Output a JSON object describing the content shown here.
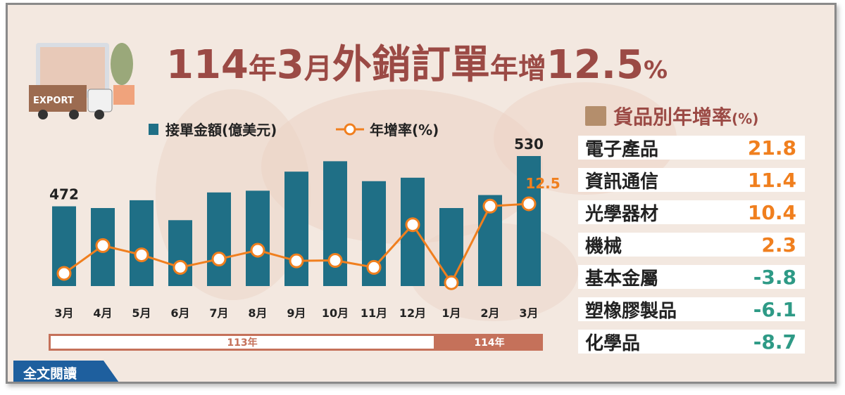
{
  "title": {
    "year": "114",
    "year_unit": "年",
    "month": "3",
    "month_unit": "月",
    "subject": "外銷訂單",
    "growth_label": "年增",
    "growth_value": "12.5",
    "growth_unit": "%"
  },
  "illustration": {
    "export_label": "EXPORT"
  },
  "legend": {
    "bar_label": "接單金額(億美元)",
    "line_label": "年增率(%)"
  },
  "chart_data": {
    "type": "bar+line",
    "categories": [
      "3月",
      "4月",
      "5月",
      "6月",
      "7月",
      "8月",
      "9月",
      "10月",
      "11月",
      "12月",
      "1月",
      "2月",
      "3月"
    ],
    "series": [
      {
        "name": "接單金額(億美元)",
        "type": "bar",
        "values": [
          472,
          470,
          479,
          456,
          488,
          490,
          512,
          524,
          501,
          505,
          470,
          485,
          530
        ]
      },
      {
        "name": "年增率(%)",
        "type": "line",
        "values": [
          -2.5,
          3.5,
          1.5,
          -1.2,
          0.6,
          2.5,
          0.2,
          0.3,
          -1.2,
          8.0,
          -4.5,
          12.0,
          12.5
        ]
      }
    ],
    "bar_labels": {
      "first": "472",
      "last": "530"
    },
    "line_label_last": "12.5",
    "period_labels": [
      "113年",
      "114年"
    ],
    "colors": {
      "bar": "#1f6f86",
      "line": "#f07f1e"
    }
  },
  "rate_table": {
    "title": "貨品別年增率",
    "unit": "(%)",
    "rows": [
      {
        "category": "電子產品",
        "value": "21.8",
        "color": "#f07f1e"
      },
      {
        "category": "資訊通信",
        "value": "11.4",
        "color": "#f07f1e"
      },
      {
        "category": "光學器材",
        "value": "10.4",
        "color": "#f07f1e"
      },
      {
        "category": "機械",
        "value": "2.3",
        "color": "#f07f1e"
      },
      {
        "category": "基本金屬",
        "value": "-3.8",
        "color": "#2e9a86"
      },
      {
        "category": "塑橡膠製品",
        "value": "-6.1",
        "color": "#2e9a86"
      },
      {
        "category": "化學品",
        "value": "-8.7",
        "color": "#2e9a86"
      }
    ]
  },
  "read_button": "全文閱讀"
}
